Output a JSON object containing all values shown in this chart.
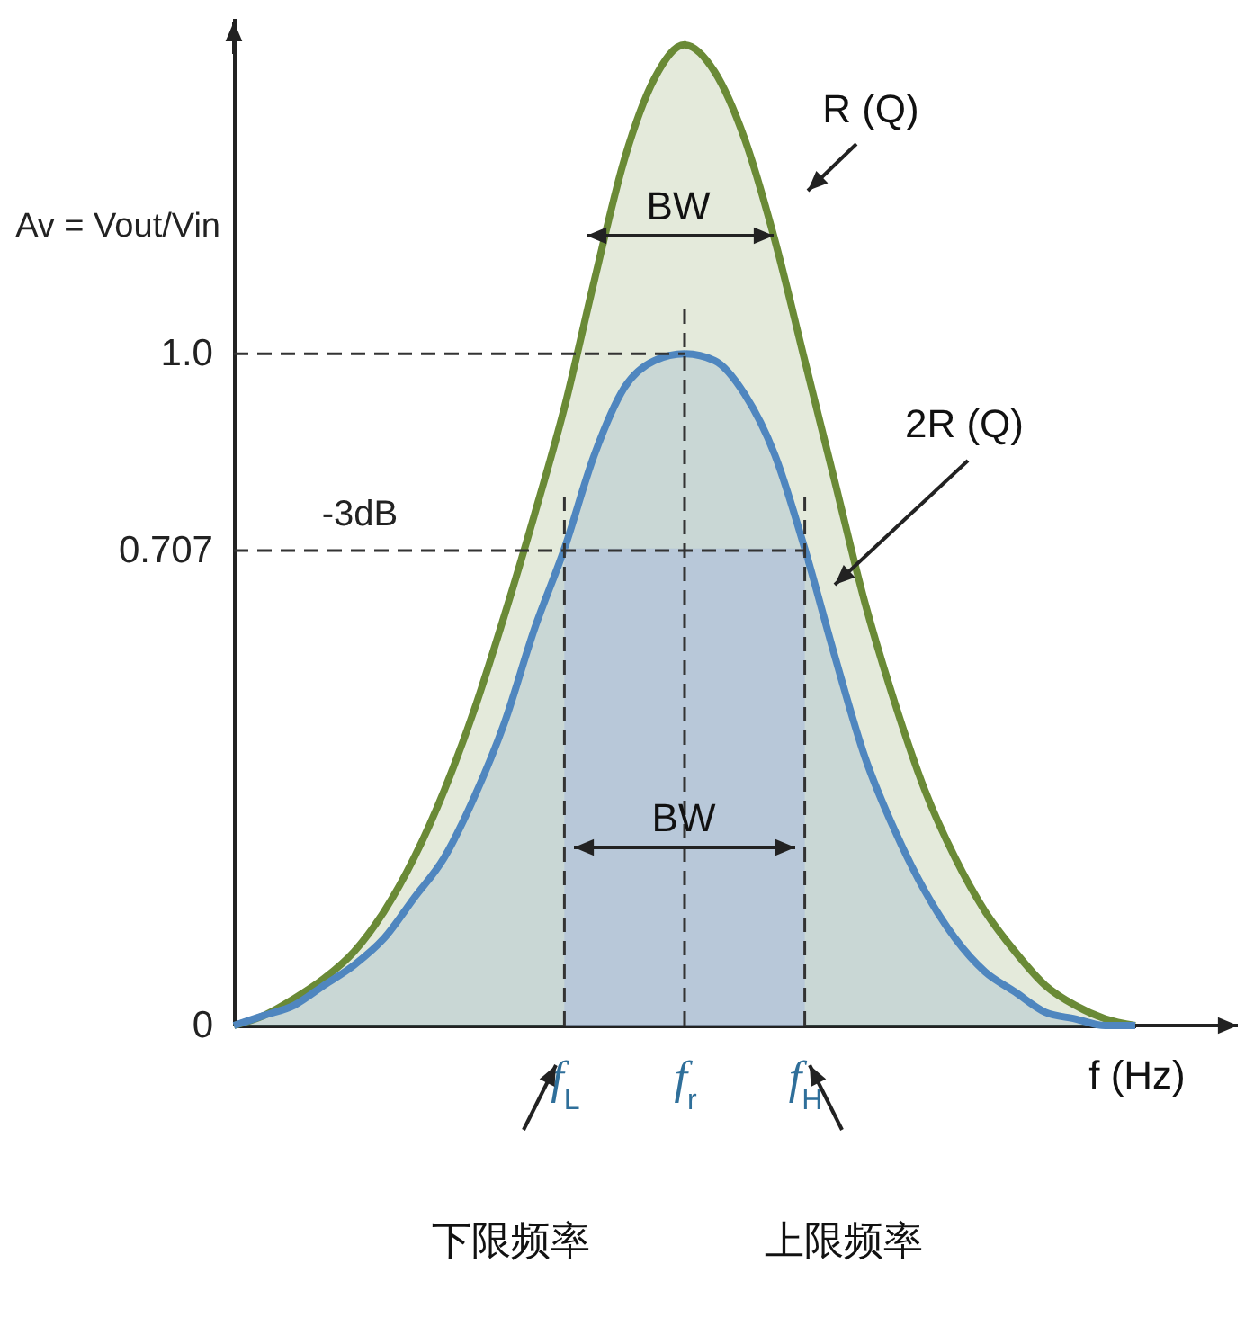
{
  "chart_data": {
    "type": "area",
    "ylabel": "Av = Vout/Vin",
    "categories": [
      null,
      null,
      null,
      null,
      null,
      null,
      null,
      null,
      null,
      null,
      null,
      "f$_{L}$",
      null,
      null,
      null,
      "f$_{r}$",
      null,
      null,
      null,
      "f$_{H}$",
      null,
      null,
      null,
      null,
      null,
      null,
      null,
      null,
      null,
      null,
      null
    ],
    "series": [
      {
        "color": "#6a8a36",
        "values": [
          0,
          0.015,
          0.04,
          0.07,
          0.11,
          0.17,
          0.25,
          0.35,
          0.47,
          0.61,
          0.76,
          0.92,
          1.11,
          1.29,
          1.41,
          1.46,
          1.42,
          1.32,
          1.17,
          0.99,
          0.81,
          0.63,
          0.48,
          0.35,
          0.25,
          0.17,
          0.11,
          0.06,
          0.03,
          0.01,
          0
        ]
      },
      {
        "color": "#4f86bf",
        "values": [
          0,
          0.015,
          0.03,
          0.06,
          0.09,
          0.13,
          0.19,
          0.25,
          0.34,
          0.45,
          0.59,
          0.71,
          0.85,
          0.95,
          0.99,
          1.0,
          0.99,
          0.94,
          0.85,
          0.71,
          0.55,
          0.4,
          0.29,
          0.2,
          0.13,
          0.08,
          0.05,
          0.02,
          0.01,
          0,
          0
        ]
      }
    ],
    "ylim": [
      0,
      1.5
    ],
    "yticks": [
      0,
      0.707,
      {
        "value": 1,
        "label": "1.0"
      }
    ],
    "ref_lines": [
      {
        "axis": "y",
        "value": 1,
        "line_style": "dashed"
      },
      {
        "axis": "y",
        "value": 0.707,
        "label": "-3dB",
        "line_style": "dashed"
      },
      {
        "axis": "x",
        "value": "f$_{L}$",
        "line_style": "dashed"
      },
      {
        "axis": "x",
        "value": "f$_{r}$",
        "line_style": "dashed"
      },
      {
        "axis": "x",
        "value": "f$_{H}$",
        "line_style": "dashed"
      }
    ],
    "bands": [
      {
        "axis": "x",
        "from": "f$_{L}$",
        "to": "f$_{H}$",
        "color": "#a9bcdc"
      }
    ],
    "annotations": [
      "R (Q)",
      "2R (Q)",
      "BW",
      "BW",
      "下限频率",
      "上限频率",
      "f (Hz)"
    ]
  }
}
